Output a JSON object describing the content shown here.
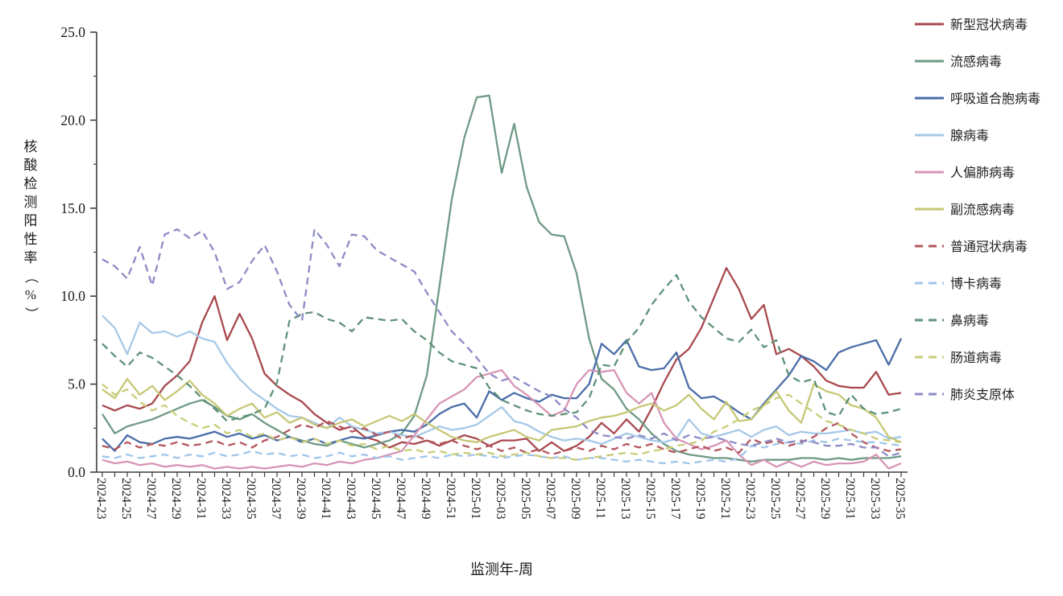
{
  "page": {
    "background": "#ffffff"
  },
  "chart_data": {
    "type": "line",
    "title": "",
    "xlabel": "监测年-周",
    "ylabel": "核酸检测阳性率（%）",
    "ylabel_chars": [
      "核",
      "酸",
      "检",
      "测",
      "阳",
      "性",
      "率",
      "（",
      "%",
      "）"
    ],
    "ylim": [
      0,
      25
    ],
    "y_tick_labels": [
      "0.0",
      "5.0",
      "10.0",
      "15.0",
      "20.0",
      "25.0"
    ],
    "y_major_step": 5,
    "y_minor_step": 2.5,
    "x_label_every": 2,
    "grid": "off",
    "legend_position": "right",
    "axis_color": "#3c3c3c",
    "text_color": "#1a1a1a",
    "categories": [
      "2024-23",
      "2024-24",
      "2024-25",
      "2024-26",
      "2024-27",
      "2024-28",
      "2024-29",
      "2024-30",
      "2024-31",
      "2024-32",
      "2024-33",
      "2024-34",
      "2024-35",
      "2024-36",
      "2024-37",
      "2024-38",
      "2024-39",
      "2024-40",
      "2024-41",
      "2024-42",
      "2024-43",
      "2024-44",
      "2024-45",
      "2024-46",
      "2024-47",
      "2024-48",
      "2024-49",
      "2024-50",
      "2024-51",
      "2024-52",
      "2025-01",
      "2025-02",
      "2025-03",
      "2025-04",
      "2025-05",
      "2025-06",
      "2025-07",
      "2025-08",
      "2025-09",
      "2025-10",
      "2025-11",
      "2025-12",
      "2025-13",
      "2025-14",
      "2025-15",
      "2025-16",
      "2025-17",
      "2025-18",
      "2025-19",
      "2025-20",
      "2025-21",
      "2025-22",
      "2025-23",
      "2025-24",
      "2025-25",
      "2025-26",
      "2025-27",
      "2025-28",
      "2025-29",
      "2025-30",
      "2025-31",
      "2025-32",
      "2025-33",
      "2025-34",
      "2025-35"
    ],
    "series": [
      {
        "name": "新型冠状病毒",
        "color": "#a8494f",
        "style": "solid",
        "values": [
          3.8,
          3.5,
          3.8,
          3.6,
          3.9,
          4.9,
          5.5,
          6.3,
          8.5,
          10.0,
          7.5,
          9.0,
          7.6,
          5.6,
          4.9,
          4.4,
          4.0,
          3.3,
          2.8,
          2.4,
          2.6,
          2.0,
          1.8,
          1.4,
          1.7,
          1.6,
          1.8,
          1.5,
          1.8,
          2.1,
          1.9,
          1.5,
          1.8,
          1.8,
          1.9,
          1.2,
          1.7,
          1.2,
          1.5,
          2.0,
          2.8,
          2.2,
          3.0,
          2.3,
          3.6,
          5.1,
          6.4,
          7.0,
          8.2,
          9.9,
          11.6,
          10.4,
          8.7,
          9.5,
          6.7,
          7.0,
          6.6,
          6.0,
          5.2,
          4.9,
          4.8,
          4.8,
          5.7,
          4.4,
          4.5
        ]
      },
      {
        "name": "流感病毒",
        "color": "#6f9a84",
        "style": "solid",
        "values": [
          3.3,
          2.2,
          2.6,
          2.8,
          3.0,
          3.3,
          3.6,
          3.9,
          4.1,
          3.7,
          3.2,
          3.0,
          3.3,
          2.8,
          2.4,
          2.0,
          1.8,
          1.6,
          1.5,
          1.8,
          1.6,
          1.4,
          1.6,
          1.8,
          2.2,
          3.2,
          5.5,
          10.5,
          15.5,
          19.0,
          21.3,
          21.4,
          17.0,
          19.8,
          16.2,
          14.2,
          13.5,
          13.4,
          11.3,
          7.6,
          5.3,
          4.7,
          3.6,
          3.0,
          2.2,
          1.6,
          1.2,
          1.0,
          0.9,
          0.8,
          0.8,
          0.7,
          0.6,
          0.7,
          0.7,
          0.7,
          0.8,
          0.8,
          0.7,
          0.8,
          0.7,
          0.8,
          0.8,
          0.8,
          0.9
        ]
      },
      {
        "name": "呼吸道合胞病毒",
        "color": "#4a6da8",
        "style": "solid",
        "values": [
          1.9,
          1.2,
          2.1,
          1.7,
          1.6,
          1.9,
          2.0,
          1.9,
          2.1,
          2.3,
          2.0,
          2.2,
          1.9,
          2.1,
          1.8,
          2.0,
          1.7,
          1.9,
          1.6,
          1.8,
          2.0,
          1.9,
          2.1,
          2.3,
          2.4,
          2.3,
          2.7,
          3.3,
          3.7,
          3.9,
          3.1,
          4.6,
          4.1,
          4.5,
          4.2,
          4.0,
          4.4,
          4.2,
          4.2,
          5.0,
          7.3,
          6.7,
          7.5,
          6.0,
          5.8,
          5.9,
          6.8,
          4.8,
          4.2,
          4.3,
          3.9,
          3.4,
          3.0,
          3.9,
          4.7,
          5.5,
          6.6,
          6.3,
          5.8,
          6.8,
          7.1,
          7.3,
          7.5,
          6.1,
          7.6
        ]
      },
      {
        "name": "腺病毒",
        "color": "#a6c9e8",
        "style": "solid",
        "values": [
          8.9,
          8.2,
          6.7,
          8.5,
          7.9,
          8.0,
          7.7,
          8.0,
          7.6,
          7.4,
          6.2,
          5.3,
          4.6,
          4.1,
          3.6,
          3.2,
          3.1,
          2.8,
          2.5,
          3.1,
          2.6,
          2.4,
          2.2,
          2.3,
          2.1,
          2.0,
          2.3,
          2.6,
          2.4,
          2.5,
          2.7,
          3.2,
          3.7,
          2.9,
          2.7,
          2.3,
          2.0,
          1.8,
          1.9,
          1.8,
          1.6,
          1.9,
          2.2,
          2.0,
          1.8,
          1.7,
          1.9,
          3.0,
          2.2,
          2.0,
          2.2,
          2.4,
          2.0,
          2.4,
          2.6,
          2.1,
          2.3,
          2.2,
          2.2,
          2.3,
          2.4,
          2.2,
          2.3,
          1.9,
          2.0
        ]
      },
      {
        "name": "人偏肺病毒",
        "color": "#d795b6",
        "style": "solid",
        "values": [
          0.7,
          0.5,
          0.6,
          0.4,
          0.5,
          0.3,
          0.4,
          0.3,
          0.4,
          0.2,
          0.3,
          0.2,
          0.3,
          0.2,
          0.3,
          0.4,
          0.3,
          0.5,
          0.4,
          0.6,
          0.5,
          0.7,
          0.8,
          1.0,
          1.2,
          2.1,
          3.0,
          3.9,
          4.3,
          4.7,
          5.4,
          5.6,
          5.8,
          4.9,
          4.4,
          3.8,
          3.2,
          3.5,
          5.0,
          5.8,
          5.7,
          5.8,
          4.5,
          3.9,
          4.5,
          2.8,
          1.9,
          1.6,
          1.3,
          1.5,
          1.8,
          1.0,
          0.4,
          0.7,
          0.3,
          0.6,
          0.3,
          0.6,
          0.4,
          0.5,
          0.5,
          0.6,
          1.0,
          0.2,
          0.5
        ]
      },
      {
        "name": "副流感病毒",
        "color": "#c6c775",
        "style": "solid",
        "values": [
          4.7,
          4.2,
          5.3,
          4.4,
          4.9,
          4.1,
          4.6,
          5.2,
          4.4,
          3.9,
          3.2,
          3.6,
          3.9,
          3.1,
          3.4,
          2.8,
          3.1,
          2.7,
          2.5,
          2.8,
          3.0,
          2.6,
          2.9,
          3.2,
          2.9,
          3.3,
          2.8,
          2.4,
          2.0,
          1.8,
          1.7,
          2.0,
          2.2,
          2.4,
          2.0,
          1.8,
          2.4,
          2.5,
          2.6,
          2.9,
          3.1,
          3.2,
          3.4,
          3.7,
          3.9,
          3.5,
          3.8,
          4.4,
          3.6,
          3.0,
          4.0,
          2.9,
          3.0,
          3.8,
          4.6,
          3.5,
          2.8,
          5.0,
          4.6,
          4.4,
          3.8,
          3.6,
          3.1,
          2.0,
          1.7
        ]
      },
      {
        "name": "普通冠状病毒",
        "color": "#b4555c",
        "style": "dashed",
        "values": [
          1.5,
          1.3,
          1.7,
          1.4,
          1.6,
          1.5,
          1.7,
          1.5,
          1.6,
          1.8,
          1.5,
          1.7,
          1.4,
          1.8,
          2.0,
          2.4,
          2.7,
          2.5,
          2.9,
          2.6,
          2.3,
          2.5,
          2.1,
          2.3,
          1.9,
          2.1,
          1.8,
          1.6,
          1.8,
          1.5,
          1.3,
          1.5,
          1.2,
          1.4,
          1.1,
          1.3,
          1.0,
          1.2,
          1.4,
          1.2,
          1.5,
          1.3,
          1.6,
          1.4,
          1.6,
          1.3,
          1.1,
          1.3,
          1.5,
          1.2,
          1.4,
          1.1,
          1.9,
          1.6,
          1.8,
          1.5,
          1.7,
          2.0,
          2.5,
          2.8,
          2.2,
          1.7,
          1.4,
          1.2,
          1.3
        ]
      },
      {
        "name": "博卡病毒",
        "color": "#a0c5ea",
        "style": "dashed",
        "values": [
          0.9,
          0.8,
          1.0,
          0.8,
          0.9,
          1.0,
          0.8,
          1.0,
          0.9,
          1.1,
          0.9,
          1.0,
          1.2,
          1.0,
          1.1,
          0.9,
          1.0,
          0.8,
          0.9,
          1.1,
          0.9,
          1.0,
          0.8,
          0.9,
          0.7,
          0.8,
          0.9,
          0.8,
          1.0,
          0.9,
          1.0,
          0.9,
          0.8,
          0.9,
          1.0,
          0.9,
          0.8,
          0.9,
          0.7,
          0.8,
          0.8,
          0.7,
          0.6,
          0.7,
          0.6,
          0.5,
          0.6,
          0.5,
          0.6,
          0.7,
          0.6,
          0.8,
          1.5,
          1.4,
          1.6,
          1.7,
          1.6,
          1.8,
          1.7,
          1.9,
          1.8,
          1.7,
          1.7,
          1.6,
          1.5
        ]
      },
      {
        "name": "鼻病毒",
        "color": "#5e9177",
        "style": "dashed",
        "values": [
          7.3,
          6.6,
          6.0,
          6.8,
          6.5,
          6.0,
          5.5,
          4.9,
          4.2,
          3.6,
          2.9,
          3.1,
          3.3,
          3.6,
          5.1,
          8.6,
          9.0,
          9.1,
          8.7,
          8.5,
          8.0,
          8.8,
          8.7,
          8.6,
          8.7,
          8.0,
          7.5,
          6.8,
          6.3,
          6.1,
          5.9,
          4.8,
          4.1,
          3.8,
          3.5,
          3.3,
          3.2,
          3.3,
          3.4,
          4.2,
          6.1,
          6.0,
          7.4,
          8.2,
          9.5,
          10.4,
          11.2,
          9.7,
          8.8,
          8.2,
          7.6,
          7.4,
          8.1,
          7.1,
          7.5,
          5.5,
          5.1,
          5.3,
          3.4,
          3.2,
          4.4,
          3.6,
          3.3,
          3.4,
          3.6
        ]
      },
      {
        "name": "肠道病毒",
        "color": "#c9cc77",
        "style": "dashed",
        "values": [
          5.0,
          4.4,
          4.7,
          4.0,
          3.5,
          3.8,
          3.2,
          2.8,
          2.5,
          2.7,
          2.2,
          2.4,
          2.0,
          2.2,
          1.8,
          2.0,
          1.7,
          1.9,
          1.6,
          1.8,
          1.5,
          1.6,
          1.3,
          1.5,
          1.2,
          1.3,
          1.1,
          1.2,
          1.0,
          1.1,
          1.0,
          1.1,
          0.9,
          1.0,
          1.1,
          0.9,
          0.8,
          0.8,
          0.7,
          0.8,
          0.9,
          1.0,
          1.1,
          1.0,
          1.2,
          1.3,
          1.5,
          1.6,
          1.8,
          2.3,
          2.6,
          3.0,
          3.5,
          3.8,
          4.2,
          4.4,
          3.9,
          3.4,
          2.9,
          2.7,
          2.4,
          2.2,
          1.9,
          1.8,
          1.7
        ]
      },
      {
        "name": "肺炎支原体",
        "color": "#8d8bc6",
        "style": "dashed",
        "values": [
          12.1,
          11.7,
          11.0,
          12.8,
          10.6,
          13.5,
          13.8,
          13.3,
          13.7,
          12.5,
          10.4,
          10.8,
          12.0,
          12.9,
          11.4,
          9.5,
          8.6,
          13.8,
          12.9,
          11.7,
          13.5,
          13.4,
          12.6,
          12.2,
          11.8,
          11.4,
          10.2,
          9.1,
          8.0,
          7.3,
          6.5,
          5.6,
          5.2,
          5.4,
          5.0,
          4.6,
          4.3,
          3.6,
          3.1,
          2.4,
          2.1,
          2.0,
          1.9,
          2.1,
          1.9,
          2.2,
          1.8,
          2.1,
          1.9,
          2.0,
          1.8,
          1.6,
          1.5,
          1.7,
          1.9,
          1.7,
          1.8,
          1.7,
          1.5,
          1.5,
          1.6,
          1.4,
          1.4,
          0.9,
          1.1
        ]
      }
    ]
  }
}
